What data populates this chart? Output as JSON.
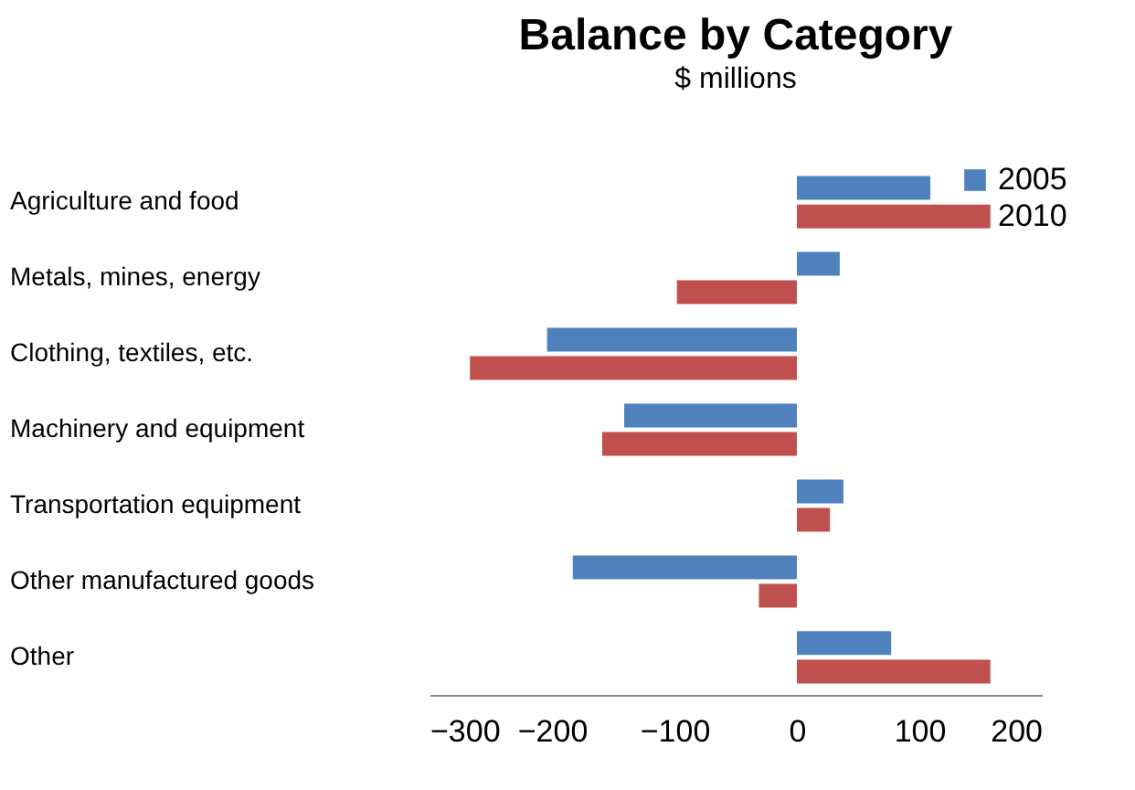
{
  "chart_data": {
    "type": "bar",
    "orientation": "horizontal",
    "title": "Balance by Category",
    "subtitle": "$ millions",
    "categories": [
      "Agriculture and food",
      "Metals, mines, energy",
      "Clothing, textiles, etc.",
      "Machinery and equipment",
      "Transportation equipment",
      "Other manufactured goods",
      "Other"
    ],
    "series": [
      {
        "name": "2005",
        "color": "#4f81bd",
        "values": [
          109,
          35,
          -204,
          -141,
          38,
          -183,
          77
        ]
      },
      {
        "name": "2010",
        "color": "#c0504d",
        "values": [
          158,
          -98,
          -267,
          -159,
          27,
          -31,
          158
        ]
      }
    ],
    "xlim": [
      -300,
      200
    ],
    "xticks": [
      -300,
      -200,
      -100,
      0,
      100,
      200
    ],
    "grid": false,
    "legend": "right"
  }
}
